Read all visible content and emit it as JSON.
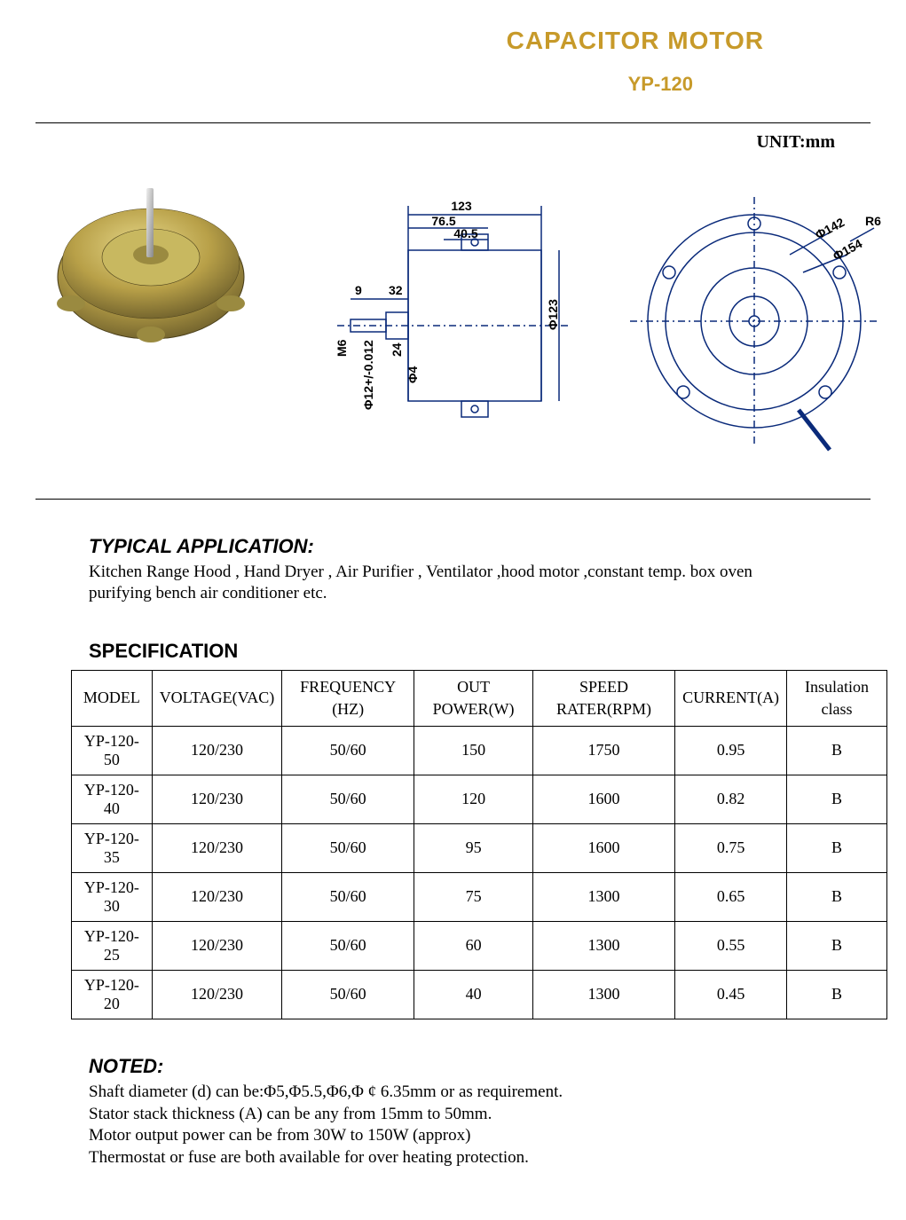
{
  "header": {
    "title": "CAPACITOR MOTOR",
    "subtitle": "YP-120",
    "title_color": "#c79a2a",
    "subtitle_color": "#c79a2a"
  },
  "unit_label": "UNIT:mm",
  "diagram": {
    "side": {
      "dims": {
        "d123": "123",
        "d76_5": "76.5",
        "d40_5": "40.5",
        "d9": "9",
        "d32": "32",
        "d24": "24",
        "m6": "M6",
        "phi12": "Φ12+/-0.012",
        "phi4": "Φ4",
        "phi123": "Φ123"
      }
    },
    "front": {
      "dims": {
        "phi142": "Φ142",
        "phi154": "Φ154",
        "r6": "R6"
      }
    },
    "line_color": "#0a2a7a",
    "photo_body_color": "#b8a048",
    "photo_shadow": "#6a5c2a"
  },
  "application": {
    "heading": "TYPICAL APPLICATION:",
    "text": "Kitchen Range Hood , Hand Dryer , Air Purifier , Ventilator ,hood motor ,constant temp. box oven purifying bench air conditioner etc."
  },
  "specification": {
    "heading": "SPECIFICATION",
    "columns": [
      "MODEL",
      "VOLTAGE(VAC)",
      "FREQUENCY (HZ)",
      "OUT POWER(W)",
      "SPEED RATER(RPM)",
      "CURRENT(A)",
      "Insulation class"
    ],
    "rows": [
      [
        "YP-120-50",
        "120/230",
        "50/60",
        "150",
        "1750",
        "0.95",
        "B"
      ],
      [
        "YP-120-40",
        "120/230",
        "50/60",
        "120",
        "1600",
        "0.82",
        "B"
      ],
      [
        "YP-120-35",
        "120/230",
        "50/60",
        "95",
        "1600",
        "0.75",
        "B"
      ],
      [
        "YP-120-30",
        "120/230",
        "50/60",
        "75",
        "1300",
        "0.65",
        "B"
      ],
      [
        "YP-120-25",
        "120/230",
        "50/60",
        "60",
        "1300",
        "0.55",
        "B"
      ],
      [
        "YP-120-20",
        "120/230",
        "50/60",
        "40",
        "1300",
        "0.45",
        "B"
      ]
    ]
  },
  "noted": {
    "heading": "NOTED:",
    "lines": [
      "Shaft diameter (d) can be:Φ5,Φ5.5,Φ6,Φ ¢ 6.35mm or as requirement.",
      "Stator stack thickness (A) can be any from 15mm to 50mm.",
      "Motor output power can be from 30W to 150W (approx)",
      "Thermostat or fuse are both available for over heating protection."
    ]
  }
}
